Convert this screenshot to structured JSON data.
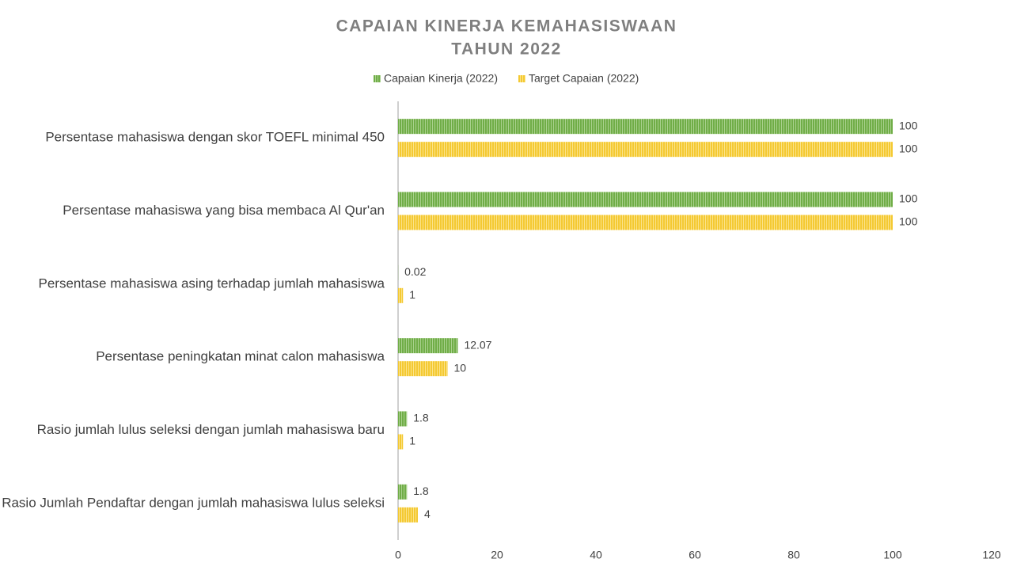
{
  "chart_data": {
    "type": "bar",
    "orientation": "horizontal",
    "title": [
      "CAPAIAN KINERJA KEMAHASISWAAN",
      "TAHUN 2022"
    ],
    "categories": [
      "Persentase mahasiswa dengan skor TOEFL minimal 450",
      "Persentase mahasiswa yang bisa membaca Al Qur'an",
      "Persentase mahasiswa asing terhadap jumlah mahasiswa",
      "Persentase peningkatan minat calon mahasiswa",
      "Rasio jumlah lulus seleksi dengan jumlah mahasiswa baru",
      "Rasio Jumlah Pendaftar dengan jumlah mahasiswa lulus seleksi"
    ],
    "series": [
      {
        "name": "Capaian Kinerja (2022)",
        "color": "#70ad47",
        "values": [
          100,
          100,
          0.02,
          12.07,
          1.8,
          1.8
        ]
      },
      {
        "name": "Target Capaian (2022)",
        "color": "#f4c932",
        "values": [
          100,
          100,
          1,
          10,
          1,
          4
        ]
      }
    ],
    "xlim": [
      0,
      120
    ],
    "xticks": [
      0,
      20,
      40,
      60,
      80,
      100,
      120
    ],
    "grid": false,
    "legend": "top"
  }
}
